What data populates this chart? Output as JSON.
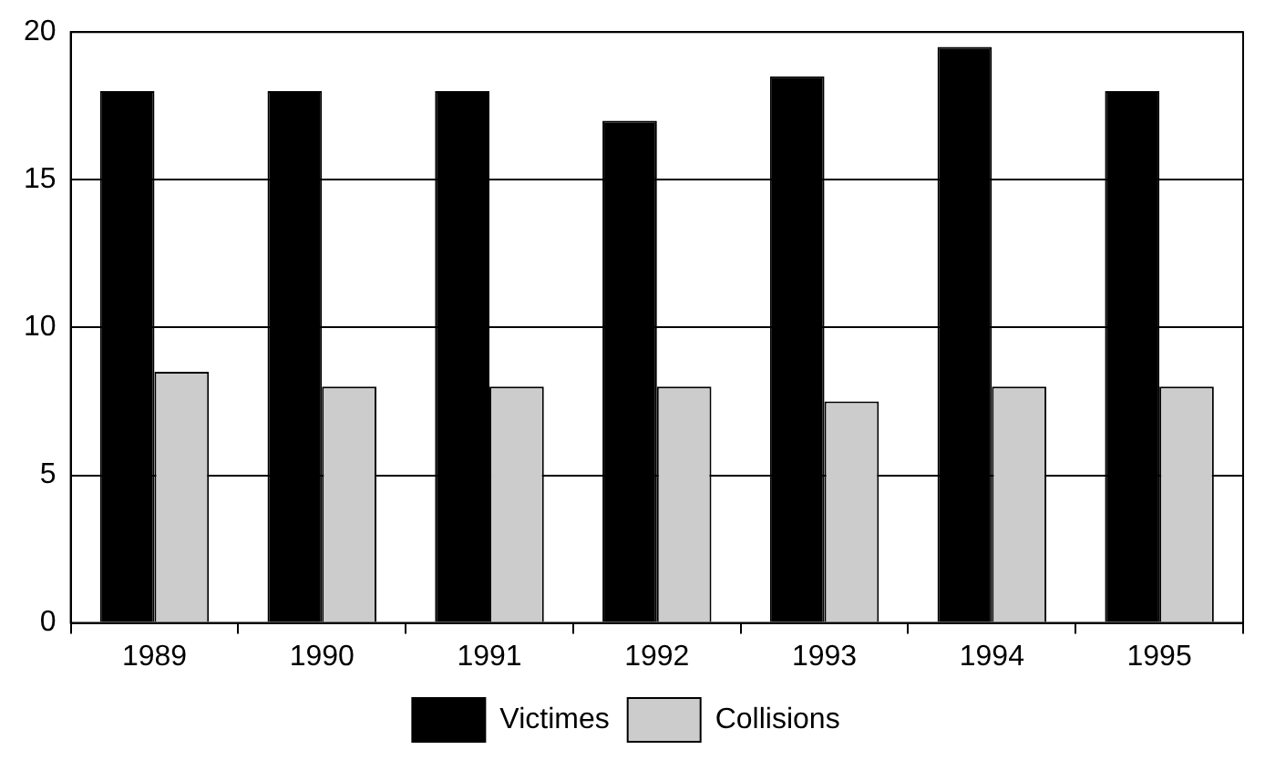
{
  "chart_data": {
    "type": "bar",
    "categories": [
      "1989",
      "1990",
      "1991",
      "1992",
      "1993",
      "1994",
      "1995"
    ],
    "series": [
      {
        "name": "Victimes",
        "color": "#000000",
        "values": [
          18,
          18,
          18,
          17,
          18.5,
          19.5,
          18
        ]
      },
      {
        "name": "Collisions",
        "color": "#cccccc",
        "values": [
          8.5,
          8,
          8,
          8,
          7.5,
          8,
          8
        ]
      }
    ],
    "ylim": [
      0,
      20
    ],
    "yticks": [
      0,
      5,
      10,
      15,
      20
    ],
    "grid": "y",
    "legend": "bottom"
  }
}
